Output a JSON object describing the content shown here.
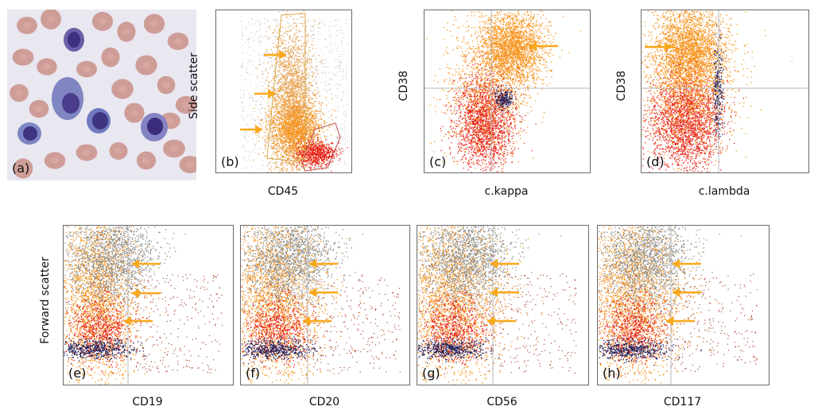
{
  "figure": {
    "panels": [
      {
        "id": "a",
        "tag": "(a)",
        "kind": "micrograph"
      },
      {
        "id": "b",
        "tag": "(b)",
        "kind": "scatter",
        "xlabel": "CD45",
        "ylabel": "Side scatter"
      },
      {
        "id": "c",
        "tag": "(c)",
        "kind": "scatter",
        "xlabel": "c.kappa",
        "ylabel": "CD38"
      },
      {
        "id": "d",
        "tag": "(d)",
        "kind": "scatter",
        "xlabel": "c.lambda",
        "ylabel": "CD38"
      },
      {
        "id": "e",
        "tag": "(e)",
        "kind": "scatter",
        "xlabel": "CD19",
        "ylabel": "Forward scatter"
      },
      {
        "id": "f",
        "tag": "(f)",
        "kind": "scatter",
        "xlabel": "CD20",
        "ylabel": ""
      },
      {
        "id": "g",
        "tag": "(g)",
        "kind": "scatter",
        "xlabel": "CD56",
        "ylabel": ""
      },
      {
        "id": "h",
        "tag": "(h)",
        "kind": "scatter",
        "xlabel": "CD117",
        "ylabel": ""
      }
    ],
    "colors": {
      "orange": "#f7941d",
      "red": "#e8241c",
      "gray": "#8c8c8c",
      "navy": "#1c1f5e",
      "arrow": "#f9a81b",
      "gate": "#d8a64a",
      "gate_red": "#c25050",
      "axis": "#6a6a6a"
    }
  }
}
